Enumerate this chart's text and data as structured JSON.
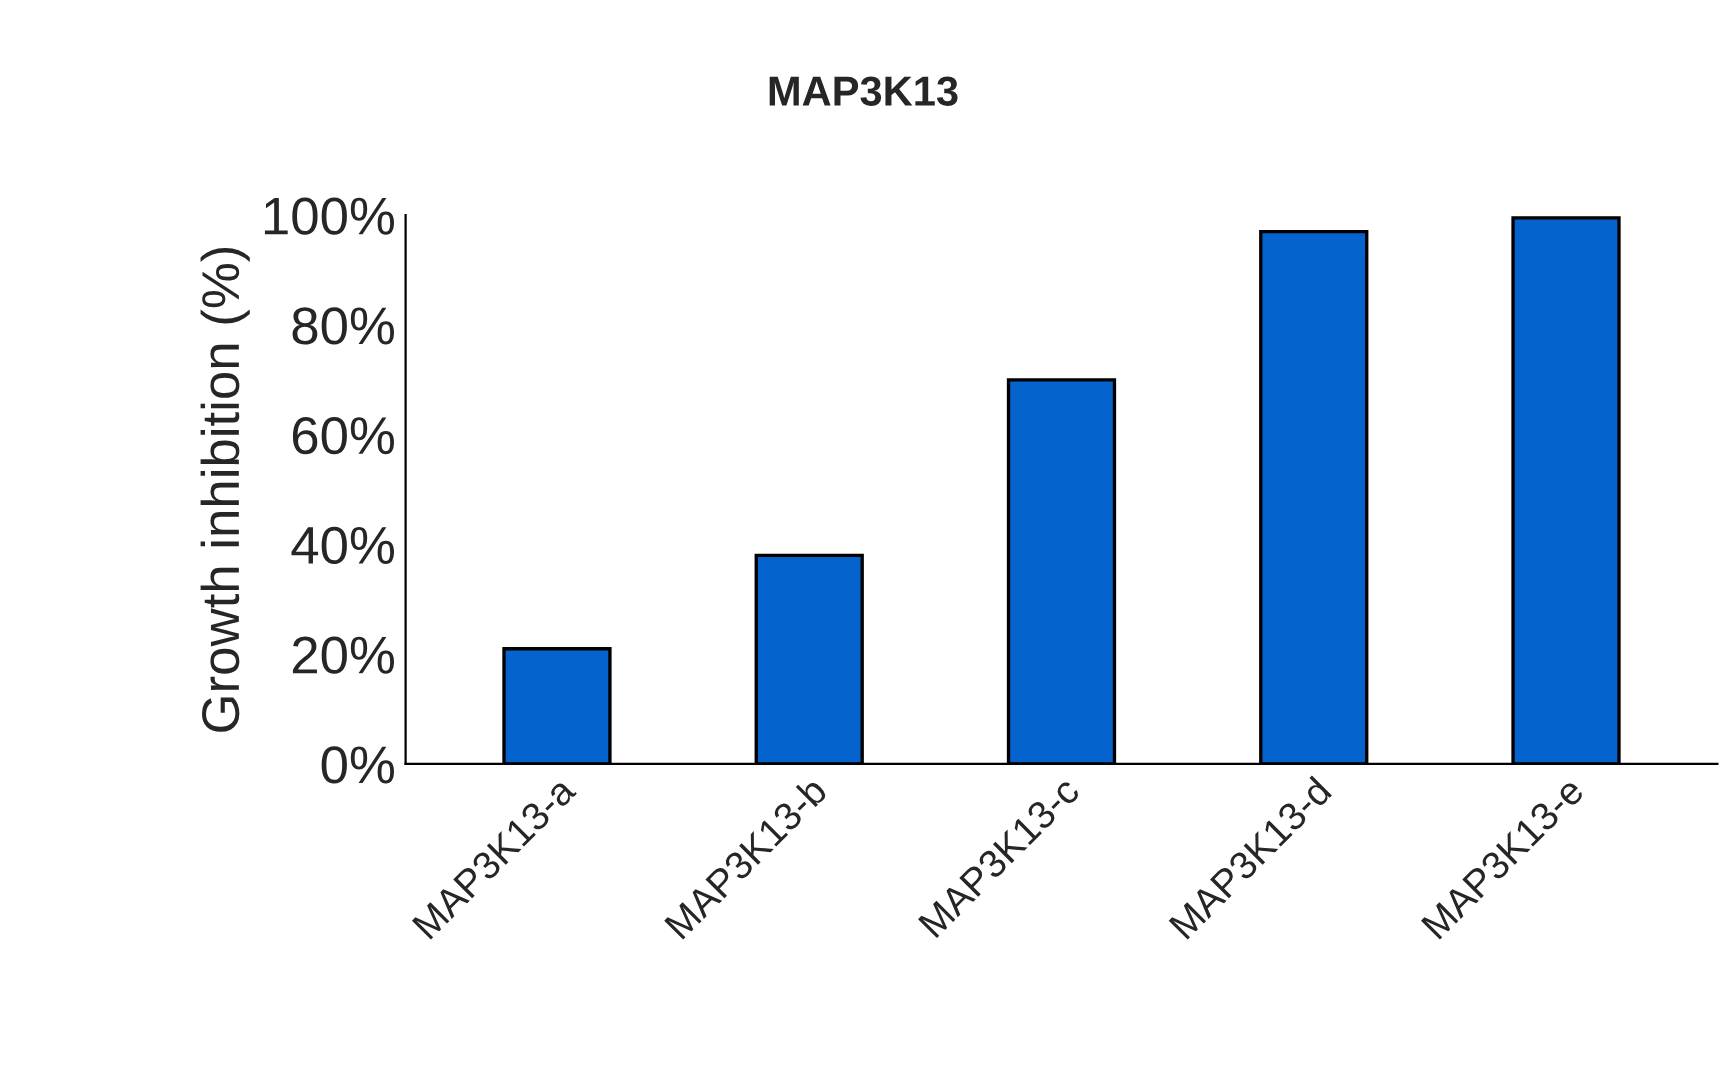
{
  "chart_data": {
    "type": "bar",
    "title": "MAP3K13",
    "ylabel": "Growth inhibition (%)",
    "categories": [
      "MAP3K13-a",
      "MAP3K13-b",
      "MAP3K13-c",
      "MAP3K13-d",
      "MAP3K13-e"
    ],
    "values": [
      21,
      38,
      70,
      97,
      99.5
    ],
    "color": "#0563cd",
    "ylim": [
      0,
      100
    ],
    "yticks": [
      {
        "value": 0,
        "label": "0%"
      },
      {
        "value": 20,
        "label": "20%"
      },
      {
        "value": 40,
        "label": "40%"
      },
      {
        "value": 60,
        "label": "60%"
      },
      {
        "value": 80,
        "label": "80%"
      },
      {
        "value": 100,
        "label": "100%"
      }
    ],
    "grid": false
  }
}
